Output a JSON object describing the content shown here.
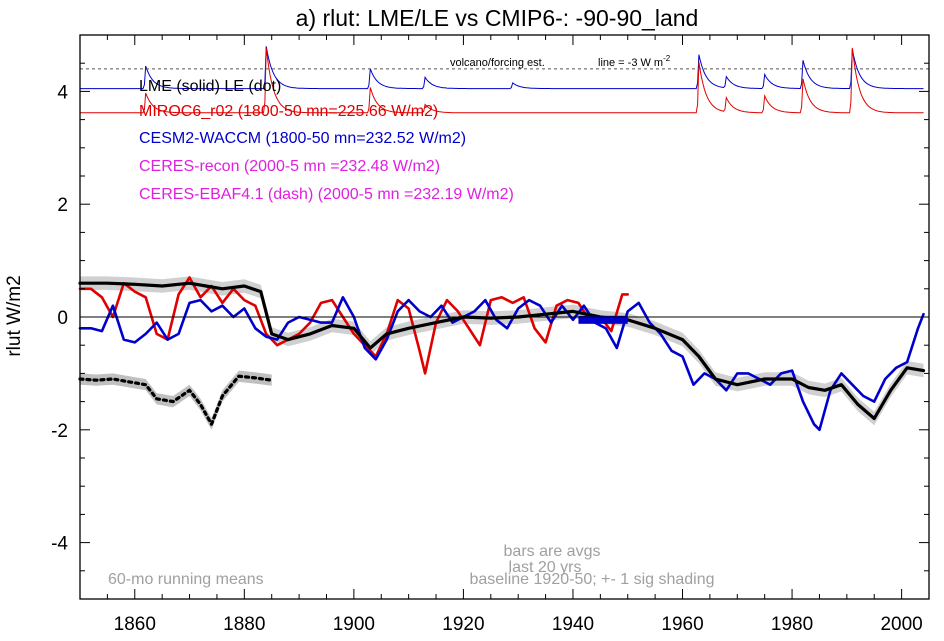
{
  "chart_data": {
    "type": "line",
    "title": "a) rlut: LME/LE vs CMIP6-: -90-90_land",
    "xlabel": "",
    "ylabel": "rlut W/m2",
    "xlim": [
      1850,
      2005
    ],
    "ylim": [
      -5,
      5
    ],
    "x_ticks": [
      1860,
      1880,
      1900,
      1920,
      1940,
      1960,
      1980,
      2000
    ],
    "y_ticks": [
      4,
      2,
      0,
      -2,
      -4
    ],
    "y_tick_labels": [
      "4",
      "2",
      "0",
      "-2",
      "-4"
    ],
    "zero_line": true,
    "forcing_panel": {
      "label": "volcano/forcing est.",
      "line_label": "line = -3 W m",
      "line_label_sup": "-2",
      "reference_level": 4.4
    },
    "legend": [
      {
        "label": "LME (solid)   LE (dot)",
        "color": "#000000"
      },
      {
        "label": "MIROC6_r02 (1800-50 mn=225.66 W/m2)",
        "color": "#e00000"
      },
      {
        "label": "CESM2-WACCM (1800-50 mn=232.52 W/m2)",
        "color": "#0000cc"
      },
      {
        "label": "CERES-recon (2000-5 mn =232.48 W/m2)",
        "color": "#e020e0"
      },
      {
        "label": "CERES-EBAF4.1 (dash) (2000-5 mn =232.19 W/m2)",
        "color": "#e020e0"
      }
    ],
    "annotations": {
      "left_note": "60-mo running means",
      "bars_note_1": "bars are avgs",
      "bars_note_2": "last 20 yrs",
      "baseline_note": "baseline 1920-50; +- 1 sig shading"
    },
    "series": [
      {
        "name": "LME (solid)",
        "color": "#000000",
        "width": 3.2,
        "x": [
          1850,
          1855,
          1860,
          1865,
          1870,
          1873,
          1876,
          1880,
          1883,
          1885,
          1888,
          1892,
          1896,
          1900,
          1903,
          1906,
          1910,
          1915,
          1920,
          1925,
          1930,
          1935,
          1940,
          1945,
          1950,
          1955,
          1960,
          1963,
          1966,
          1970,
          1975,
          1980,
          1983,
          1986,
          1989,
          1992,
          1995,
          1998,
          2001,
          2004
        ],
        "y": [
          0.6,
          0.6,
          0.58,
          0.55,
          0.6,
          0.55,
          0.5,
          0.55,
          0.45,
          -0.3,
          -0.4,
          -0.3,
          -0.15,
          -0.2,
          -0.55,
          -0.3,
          -0.2,
          -0.1,
          0.0,
          -0.02,
          0.0,
          0.05,
          0.1,
          0.0,
          -0.05,
          -0.2,
          -0.4,
          -0.7,
          -1.1,
          -1.2,
          -1.1,
          -1.1,
          -1.25,
          -1.3,
          -1.2,
          -1.55,
          -1.8,
          -1.3,
          -0.9,
          -0.95
        ]
      },
      {
        "name": "LE (dot)",
        "color": "#000000",
        "width": 3.2,
        "dash": "3,4",
        "x": [
          1850,
          1853,
          1856,
          1859,
          1862,
          1864,
          1867,
          1870,
          1872,
          1874,
          1876,
          1879,
          1882,
          1885
        ],
        "y": [
          -1.1,
          -1.12,
          -1.1,
          -1.15,
          -1.2,
          -1.45,
          -1.5,
          -1.3,
          -1.55,
          -1.9,
          -1.4,
          -1.05,
          -1.08,
          -1.12
        ]
      },
      {
        "name": "MIROC6_r02",
        "color": "#e00000",
        "width": 2.6,
        "x": [
          1850,
          1852,
          1854,
          1856,
          1858,
          1860,
          1862,
          1864,
          1866,
          1868,
          1870,
          1872,
          1874,
          1876,
          1878,
          1880,
          1882,
          1884,
          1886,
          1888,
          1890,
          1892,
          1894,
          1896,
          1898,
          1900,
          1902,
          1904,
          1906,
          1908,
          1910,
          1912,
          1913,
          1915,
          1917,
          1919,
          1921,
          1923,
          1925,
          1927,
          1929,
          1931,
          1933,
          1935,
          1937,
          1939,
          1941,
          1943,
          1945,
          1947,
          1949,
          1950
        ],
        "y": [
          0.5,
          0.5,
          0.35,
          0.0,
          0.6,
          0.45,
          0.35,
          -0.3,
          -0.4,
          0.4,
          0.7,
          0.35,
          0.55,
          0.25,
          0.5,
          0.3,
          0.2,
          -0.3,
          -0.5,
          -0.4,
          -0.3,
          -0.1,
          0.25,
          0.3,
          0.0,
          -0.3,
          -0.5,
          -0.7,
          -0.3,
          0.3,
          0.15,
          -0.6,
          -1.0,
          -0.1,
          0.3,
          0.1,
          -0.2,
          -0.5,
          0.3,
          0.35,
          0.25,
          0.35,
          -0.2,
          -0.45,
          0.2,
          0.3,
          0.25,
          -0.05,
          0.0,
          -0.25,
          0.4,
          0.4
        ]
      },
      {
        "name": "CESM2-WACCM",
        "color": "#0000cc",
        "width": 2.6,
        "x": [
          1850,
          1852,
          1854,
          1856,
          1858,
          1860,
          1862,
          1864,
          1866,
          1868,
          1870,
          1872,
          1874,
          1876,
          1878,
          1880,
          1882,
          1884,
          1886,
          1888,
          1890,
          1892,
          1894,
          1896,
          1898,
          1900,
          1902,
          1904,
          1906,
          1908,
          1910,
          1912,
          1914,
          1916,
          1918,
          1920,
          1922,
          1924,
          1926,
          1928,
          1930,
          1932,
          1934,
          1936,
          1938,
          1940,
          1942,
          1944,
          1946,
          1948,
          1950,
          1952,
          1954,
          1956,
          1958,
          1960,
          1962,
          1964,
          1966,
          1968,
          1970,
          1972,
          1974,
          1976,
          1978,
          1980,
          1982,
          1984,
          1985,
          1987,
          1989,
          1991,
          1993,
          1995,
          1997,
          1999,
          2001,
          2003,
          2004
        ],
        "y": [
          -0.2,
          -0.2,
          -0.25,
          0.2,
          -0.4,
          -0.45,
          -0.3,
          -0.1,
          -0.4,
          -0.3,
          0.25,
          0.3,
          0.1,
          0.2,
          0.0,
          0.15,
          -0.2,
          -0.35,
          -0.4,
          -0.1,
          0.0,
          -0.05,
          -0.1,
          -0.1,
          0.35,
          0.0,
          -0.55,
          -0.75,
          -0.4,
          0.1,
          0.3,
          0.1,
          0.0,
          0.2,
          -0.1,
          0.0,
          0.1,
          0.3,
          -0.05,
          -0.2,
          0.15,
          0.3,
          0.2,
          -0.1,
          0.2,
          -0.05,
          0.2,
          -0.1,
          -0.2,
          -0.55,
          0.1,
          0.25,
          -0.1,
          -0.3,
          -0.6,
          -0.7,
          -1.2,
          -1.0,
          -1.1,
          -1.3,
          -1.0,
          -1.0,
          -1.1,
          -1.2,
          -1.0,
          -0.95,
          -1.5,
          -1.9,
          -2.0,
          -1.3,
          -1.0,
          -1.2,
          -1.4,
          -1.5,
          -1.1,
          -0.9,
          -0.8,
          -0.2,
          0.05
        ]
      }
    ],
    "spread_band": {
      "color": "#d0d0d0",
      "half_width": 0.12,
      "follows": "LME (solid)"
    },
    "le_band": {
      "color": "#c0c0c0",
      "half_width": 0.1,
      "follows": "LE (dot)"
    },
    "last20_bar": {
      "color": "#0000cc",
      "x": [
        1941,
        1950
      ],
      "y": -0.05
    },
    "forcing_curves": [
      {
        "name": "CESM2-WACCM forcing",
        "color": "#0000cc",
        "base": 4.05,
        "spikes": [
          [
            1862,
            0.4
          ],
          [
            1884,
            0.75
          ],
          [
            1903,
            0.35
          ],
          [
            1913,
            0.2
          ],
          [
            1929,
            0.1
          ],
          [
            1963,
            0.6
          ],
          [
            1968,
            0.2
          ],
          [
            1975,
            0.25
          ],
          [
            1982,
            0.5
          ],
          [
            1991,
            0.7
          ]
        ]
      },
      {
        "name": "MIROC6 forcing",
        "color": "#e00000",
        "base": 3.62,
        "spikes": [
          [
            1862,
            0.35
          ],
          [
            1884,
            1.15
          ],
          [
            1903,
            0.45
          ],
          [
            1913,
            0.15
          ],
          [
            1963,
            0.9
          ],
          [
            1968,
            0.25
          ],
          [
            1975,
            0.3
          ],
          [
            1982,
            0.6
          ],
          [
            1991,
            1.15
          ]
        ]
      }
    ]
  }
}
